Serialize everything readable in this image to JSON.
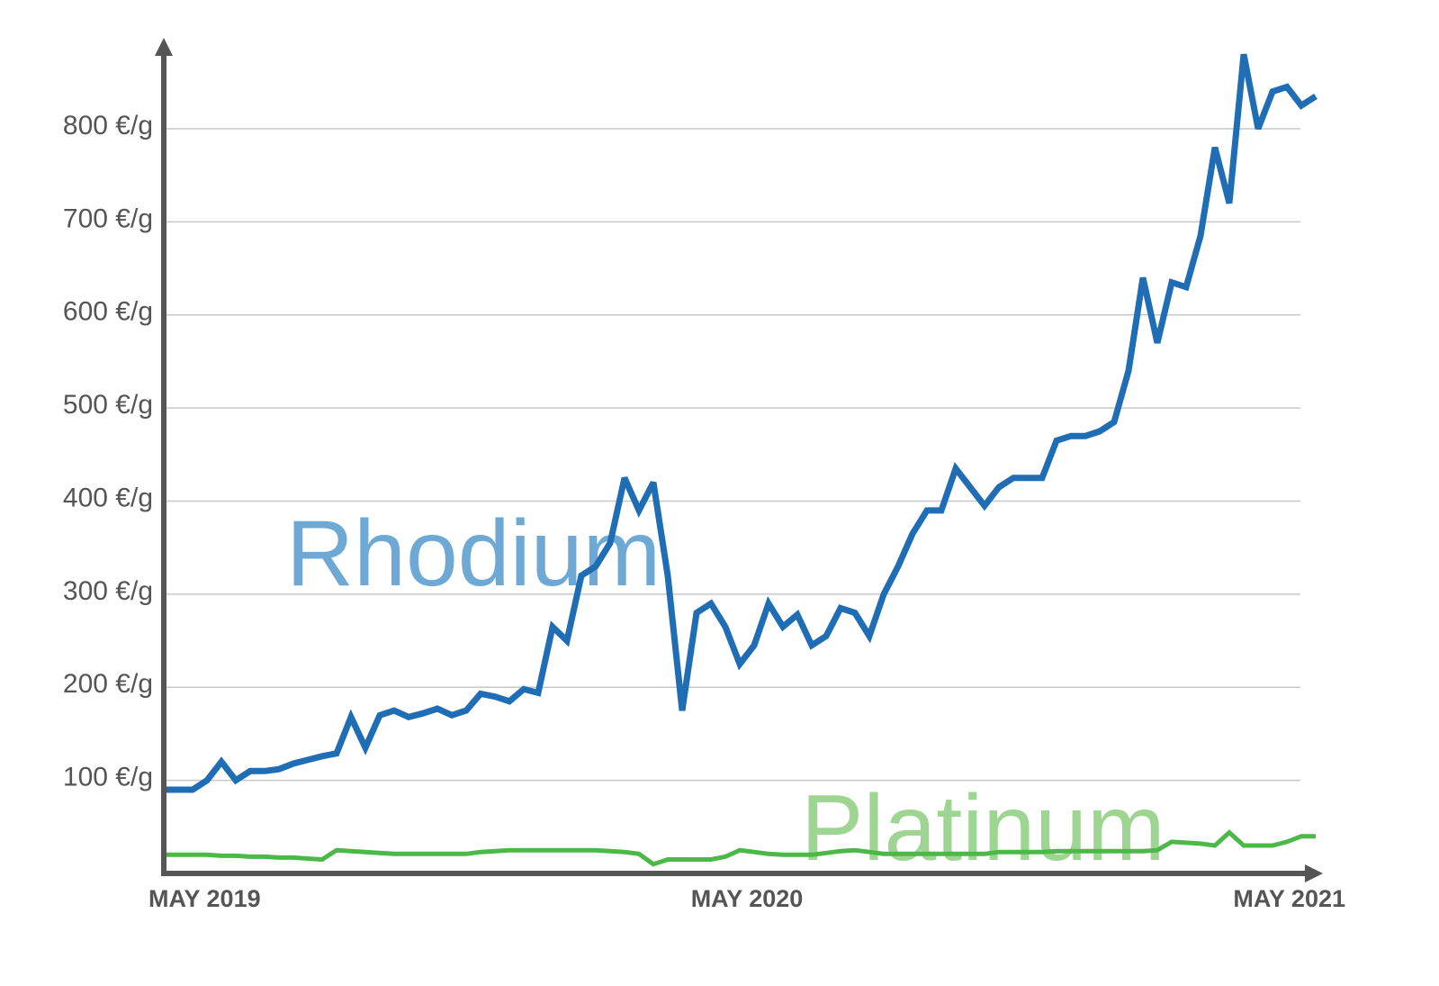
{
  "chart_data": {
    "type": "line",
    "categories": [
      "MAY 2019",
      null,
      null,
      null,
      null,
      null,
      null,
      null,
      null,
      null,
      null,
      null,
      null,
      null,
      null,
      null,
      null,
      null,
      null,
      null,
      null,
      null,
      null,
      null,
      null,
      null,
      null,
      null,
      null,
      null,
      null,
      null,
      null,
      null,
      null,
      null,
      null,
      null,
      null,
      null,
      "MAY 2020",
      null,
      null,
      null,
      null,
      null,
      null,
      null,
      null,
      null,
      null,
      null,
      null,
      null,
      null,
      null,
      null,
      null,
      null,
      null,
      null,
      null,
      null,
      null,
      null,
      null,
      null,
      null,
      null,
      null,
      null,
      null,
      null,
      null,
      null,
      null,
      null,
      null,
      null,
      null,
      "MAY 2021"
    ],
    "series": [
      {
        "name": "Rhodium",
        "color": "#1f6db5",
        "label_color": "#6ea9d6",
        "values": [
          90,
          90,
          90,
          100,
          120,
          100,
          110,
          110,
          112,
          118,
          122,
          126,
          129,
          168,
          135,
          170,
          175,
          168,
          172,
          177,
          170,
          175,
          193,
          190,
          185,
          198,
          194,
          265,
          250,
          320,
          330,
          355,
          425,
          390,
          420,
          320,
          175,
          280,
          290,
          265,
          225,
          245,
          290,
          265,
          278,
          245,
          255,
          285,
          280,
          255,
          300,
          330,
          365,
          390,
          390,
          435,
          415,
          395,
          415,
          425,
          425,
          425,
          465,
          470,
          470,
          475,
          485,
          540,
          640,
          570,
          635,
          630,
          685,
          780,
          720,
          880,
          800,
          840,
          845,
          825,
          835
        ]
      },
      {
        "name": "Platinum",
        "color": "#4cb848",
        "label_color": "#9fd592",
        "values": [
          20,
          20,
          20,
          20,
          19,
          19,
          18,
          18,
          17,
          17,
          16,
          15,
          25,
          24,
          23,
          22,
          21,
          21,
          21,
          21,
          21,
          21,
          23,
          24,
          25,
          25,
          25,
          25,
          25,
          25,
          25,
          24,
          23,
          21,
          10,
          15,
          15,
          15,
          15,
          18,
          25,
          23,
          21,
          20,
          20,
          20,
          22,
          24,
          25,
          23,
          21,
          21,
          21,
          21,
          21,
          21,
          21,
          21,
          23,
          23,
          23,
          23,
          24,
          24,
          24,
          24,
          24,
          24,
          24,
          25,
          34,
          33,
          32,
          30,
          44,
          30,
          30,
          30,
          34,
          40,
          40
        ]
      }
    ],
    "ylim": [
      0,
      890
    ],
    "yticks": [
      {
        "value": 100,
        "label": "100 €/g"
      },
      {
        "value": 200,
        "label": "200 €/g"
      },
      {
        "value": 300,
        "label": "300 €/g"
      },
      {
        "value": 400,
        "label": "400 €/g"
      },
      {
        "value": 500,
        "label": "500 €/g"
      },
      {
        "value": 600,
        "label": "600 €/g"
      },
      {
        "value": 700,
        "label": "700 €/g"
      },
      {
        "value": 800,
        "label": "800 €/g"
      }
    ],
    "grid": true
  }
}
